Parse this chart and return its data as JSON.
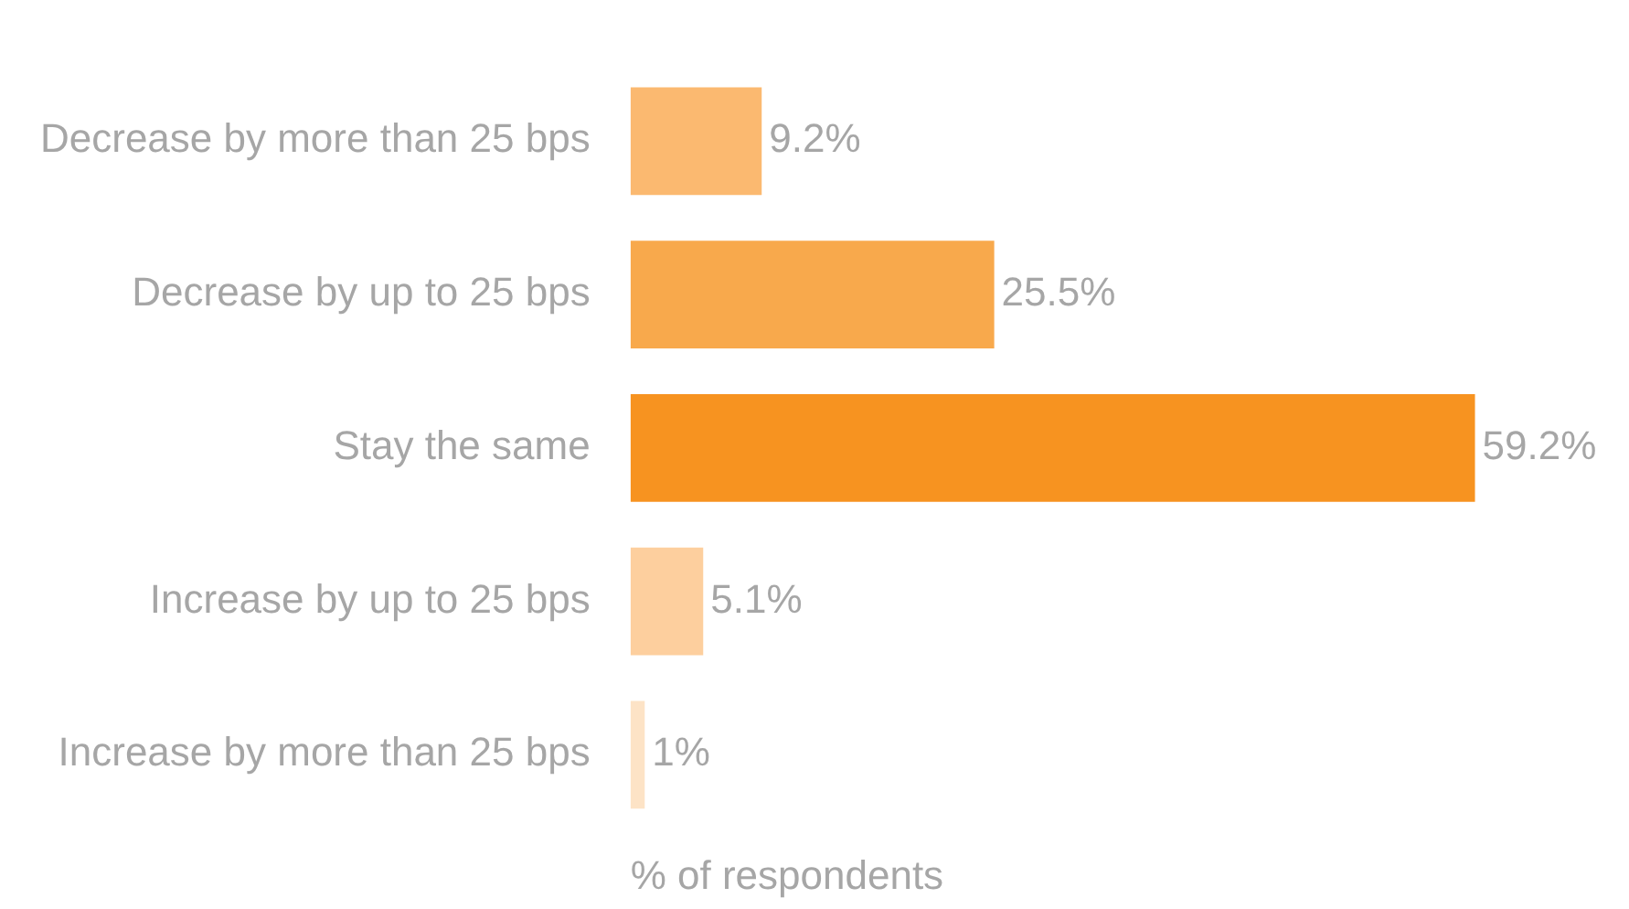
{
  "chart_data": {
    "type": "bar",
    "orientation": "horizontal",
    "categories": [
      "Decrease by more than 25 bps",
      "Decrease by up to 25 bps",
      "Stay the same",
      "Increase by up to 25 bps",
      "Increase by more than 25 bps"
    ],
    "values": [
      9.2,
      25.5,
      59.2,
      5.1,
      1
    ],
    "colors": [
      "#fbb970",
      "#f8a94c",
      "#f79320",
      "#fdcf9e",
      "#fde3c6"
    ],
    "value_labels": [
      "9.2%",
      "25.5%",
      "59.2%",
      "5.1%",
      "1%"
    ],
    "xlabel": "% of respondents",
    "tick_labels": "y",
    "grid": false,
    "legend": false
  }
}
